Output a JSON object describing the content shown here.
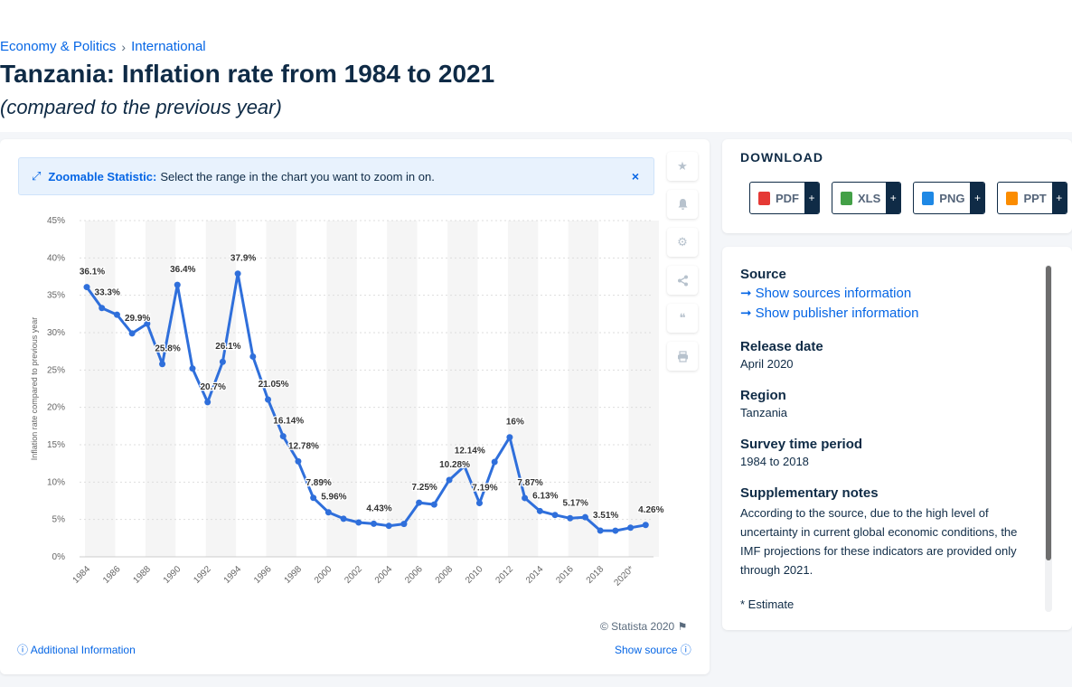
{
  "breadcrumb": {
    "first": "Economy & Politics",
    "separator": "›",
    "second": "International"
  },
  "page": {
    "title": "Tanzania: Inflation rate from 1984 to 2021",
    "subtitle": "(compared to the previous year)"
  },
  "zoom_banner": {
    "bold": "Zoomable Statistic:",
    "text": "Select the range in the chart you want to zoom in on.",
    "close": "×"
  },
  "side_tools": [
    "star-icon",
    "bell-icon",
    "gear-icon",
    "share-icon",
    "quote-icon",
    "print-icon"
  ],
  "chart_data": {
    "type": "line",
    "title": "",
    "xlabel": "",
    "ylabel": "Inflation rate compared to previous year",
    "ylim": [
      0,
      45
    ],
    "yticks": [
      "0%",
      "5%",
      "10%",
      "15%",
      "20%",
      "25%",
      "30%",
      "35%",
      "40%",
      "45%"
    ],
    "xticks": [
      "1984",
      "1986",
      "1988",
      "1990",
      "1992",
      "1994",
      "1996",
      "1998",
      "2000",
      "2002",
      "2004",
      "2006",
      "2008",
      "2010",
      "2012",
      "2014",
      "2016",
      "2018",
      "2020*"
    ],
    "series": [
      {
        "color": "#2f6fdb",
        "x": [
          1984,
          1985,
          1986,
          1987,
          1988,
          1989,
          1990,
          1991,
          1992,
          1993,
          1994,
          1995,
          1996,
          1997,
          1998,
          1999,
          2000,
          2001,
          2002,
          2003,
          2004,
          2005,
          2006,
          2007,
          2008,
          2009,
          2010,
          2011,
          2012,
          2013,
          2014,
          2015,
          2016,
          2017,
          2018,
          2019,
          2020,
          2021
        ],
        "values": [
          36.1,
          33.3,
          32.4,
          29.9,
          31.2,
          25.8,
          36.4,
          25.2,
          20.7,
          26.1,
          37.9,
          26.8,
          21.05,
          16.14,
          12.78,
          7.89,
          5.96,
          5.1,
          4.6,
          4.43,
          4.15,
          4.4,
          7.25,
          7.0,
          10.28,
          12.14,
          7.19,
          12.7,
          16.0,
          7.87,
          6.13,
          5.6,
          5.17,
          5.3,
          3.51,
          3.5,
          3.9,
          4.26
        ],
        "labels": [
          {
            "x": 1984,
            "text": "36.1%"
          },
          {
            "x": 1985,
            "text": "33.3%"
          },
          {
            "x": 1987,
            "text": "29.9%"
          },
          {
            "x": 1989,
            "text": "25.8%"
          },
          {
            "x": 1990,
            "text": "36.4%"
          },
          {
            "x": 1992,
            "text": "20.7%"
          },
          {
            "x": 1993,
            "text": "26.1%"
          },
          {
            "x": 1994,
            "text": "37.9%"
          },
          {
            "x": 1996,
            "text": "21.05%"
          },
          {
            "x": 1997,
            "text": "16.14%"
          },
          {
            "x": 1998,
            "text": "12.78%"
          },
          {
            "x": 1999,
            "text": "7.89%"
          },
          {
            "x": 2000,
            "text": "5.96%"
          },
          {
            "x": 2003,
            "text": "4.43%"
          },
          {
            "x": 2006,
            "text": "7.25%"
          },
          {
            "x": 2008,
            "text": "10.28%"
          },
          {
            "x": 2009,
            "text": "12.14%"
          },
          {
            "x": 2010,
            "text": "7.19%"
          },
          {
            "x": 2012,
            "text": "16%"
          },
          {
            "x": 2013,
            "text": "7.87%"
          },
          {
            "x": 2014,
            "text": "6.13%"
          },
          {
            "x": 2016,
            "text": "5.17%"
          },
          {
            "x": 2018,
            "text": "3.51%"
          },
          {
            "x": 2021,
            "text": "4.26%"
          }
        ]
      }
    ],
    "grid": true,
    "legend": "none"
  },
  "footer": {
    "copyright": "© Statista 2020",
    "additional": "Additional Information",
    "show_source": "Show source"
  },
  "download": {
    "title": "DOWNLOAD",
    "buttons": [
      {
        "label": "PDF",
        "color": "#e53935"
      },
      {
        "label": "XLS",
        "color": "#43a047"
      },
      {
        "label": "PNG",
        "color": "#1e88e5"
      },
      {
        "label": "PPT",
        "color": "#fb8c00"
      }
    ],
    "plus": "+"
  },
  "info": {
    "source_h": "Source",
    "sources_link": "Show sources information",
    "publisher_link": "Show publisher information",
    "release_h": "Release date",
    "release_v": "April 2020",
    "region_h": "Region",
    "region_v": "Tanzania",
    "survey_h": "Survey time period",
    "survey_v": "1984 to 2018",
    "notes_h": "Supplementary notes",
    "notes_v": "According to the source, due to the high level of uncertainty in current global economic conditions, the IMF projections for these indicators are provided only through 2021.",
    "estimate": "* Estimate"
  }
}
